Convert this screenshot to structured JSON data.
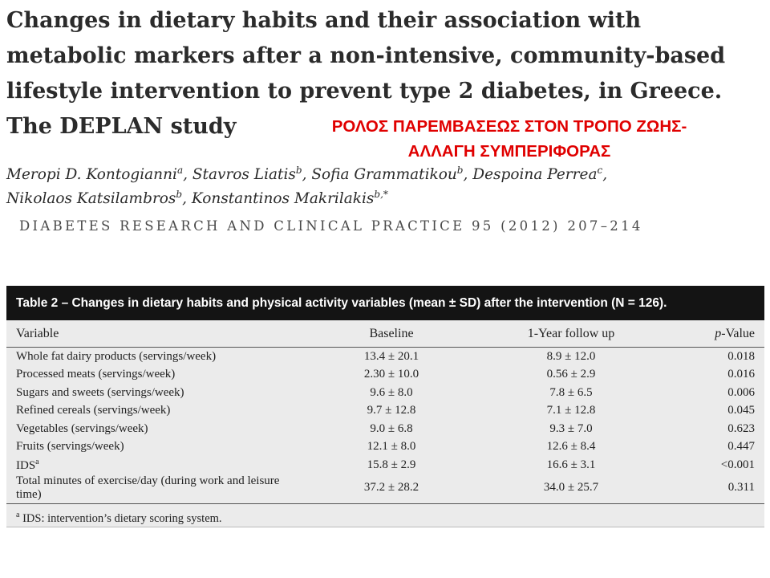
{
  "title": "Changes in dietary habits and their association with metabolic markers after a non-intensive, community-based lifestyle intervention to prevent type 2 diabetes, in Greece. The DEPLAN study",
  "greek_note": {
    "line1": "ΡΟΛΟΣ ΠΑΡΕΜΒΑΣΕΩΣ ΣΤΟΝ ΤΡΟΠΟ ΖΩΗΣ-",
    "line2": "ΑΛΛΑΓΗ ΣΥΜΠΕΡΙΦΟΡΑΣ",
    "color": "#e00000"
  },
  "authors": [
    {
      "name": "Meropi D. Kontogianni",
      "aff": "a"
    },
    {
      "name": "Stavros Liatis",
      "aff": "b"
    },
    {
      "name": "Sofia Grammatikou",
      "aff": "b"
    },
    {
      "name": "Despoina Perrea",
      "aff": "c"
    },
    {
      "name": "Nikolaos Katsilambros",
      "aff": "b"
    },
    {
      "name": "Konstantinos Makrilakis",
      "aff": "b,*"
    }
  ],
  "journal": "DIABETES RESEARCH AND CLINICAL PRACTICE 95 (2012) 207–214",
  "table": {
    "caption": "Table 2 – Changes in dietary habits and physical activity variables (mean ± SD) after the intervention (N = 126).",
    "columns": {
      "variable": "Variable",
      "baseline": "Baseline",
      "followup": "1-Year follow up",
      "p_prefix": "p",
      "p_suffix": "-Value"
    },
    "rows": [
      {
        "variable": "Whole fat dairy products (servings/week)",
        "sup": "",
        "baseline": "13.4 ± 20.1",
        "followup": "8.9 ± 12.0",
        "p": "0.018"
      },
      {
        "variable": "Processed meats (servings/week)",
        "sup": "",
        "baseline": "2.30 ± 10.0",
        "followup": "0.56 ± 2.9",
        "p": "0.016"
      },
      {
        "variable": "Sugars and sweets (servings/week)",
        "sup": "",
        "baseline": "9.6 ± 8.0",
        "followup": "7.8 ± 6.5",
        "p": "0.006"
      },
      {
        "variable": "Refined cereals (servings/week)",
        "sup": "",
        "baseline": "9.7 ± 12.8",
        "followup": "7.1 ± 12.8",
        "p": "0.045"
      },
      {
        "variable": "Vegetables (servings/week)",
        "sup": "",
        "baseline": "9.0 ± 6.8",
        "followup": "9.3 ± 7.0",
        "p": "0.623"
      },
      {
        "variable": "Fruits (servings/week)",
        "sup": "",
        "baseline": "12.1 ± 8.0",
        "followup": "12.6 ± 8.4",
        "p": "0.447"
      },
      {
        "variable": "IDS",
        "sup": "a",
        "baseline": "15.8 ± 2.9",
        "followup": "16.6 ± 3.1",
        "p": "<0.001"
      },
      {
        "variable": "Total minutes of exercise/day (during work and leisure time)",
        "sup": "",
        "baseline": "37.2 ± 28.2",
        "followup": "34.0 ± 25.7",
        "p": "0.311"
      }
    ],
    "footnote_mark": "a",
    "footnote": " IDS: intervention’s dietary scoring system."
  }
}
